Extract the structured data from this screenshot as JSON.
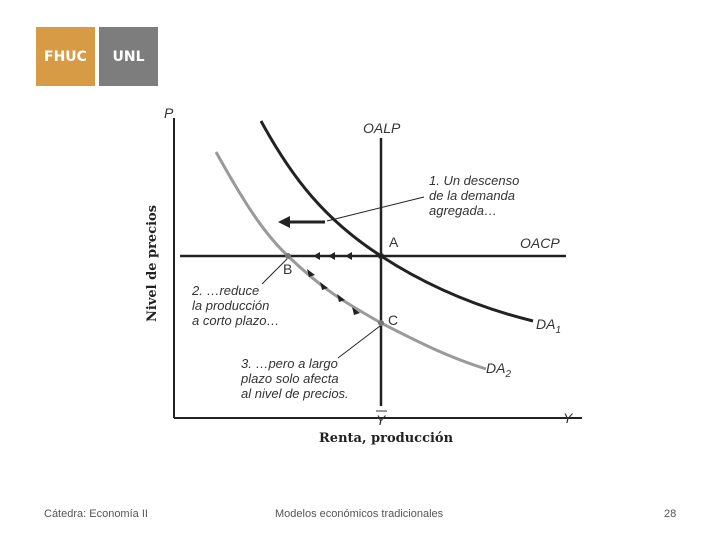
{
  "logos": {
    "left": "FHUC",
    "right": "UNL"
  },
  "axes": {
    "y_label": "Nivel de precios",
    "x_label": "Renta, producción",
    "y_symbol": "P",
    "x_symbol": "Y",
    "x_potential": "Y"
  },
  "curves": {
    "lras": "OALP",
    "sras": "OACP",
    "ad1": "DA",
    "ad1_sub": "1",
    "ad2": "DA",
    "ad2_sub": "2"
  },
  "points": {
    "a": "A",
    "b": "B",
    "c": "C"
  },
  "annotations": {
    "note1": [
      "1. Un descenso",
      "de la demanda",
      "agregada…"
    ],
    "note2": [
      "2. …reduce",
      "la producción",
      "a corto plazo…"
    ],
    "note3": [
      "3. …pero a largo",
      "plazo solo afecta",
      "al nivel de precios."
    ]
  },
  "colors": {
    "dark_curve": "#222222",
    "light_curve": "#9a9a9a",
    "fhuc": "#d79a45",
    "unl": "#7d7d7d"
  },
  "footer": {
    "course": "Cátedra: Economía II",
    "topic": "Modelos económicos tradicionales",
    "page": "28"
  }
}
